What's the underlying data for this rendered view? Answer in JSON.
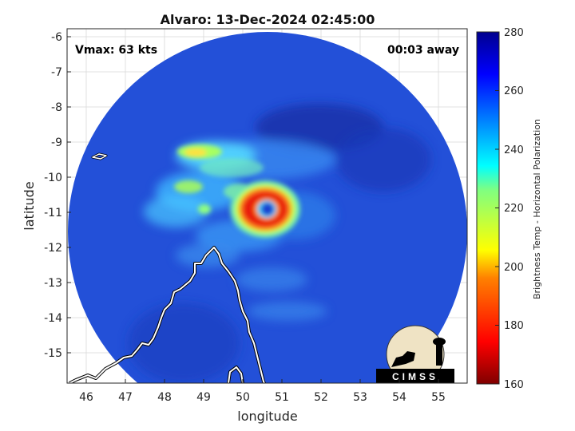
{
  "title": "Alvaro: 13-Dec-2024 02:45:00",
  "vmax_text": "Vmax: 63 kts",
  "away_text": "00:03 away",
  "xlabel": "longitude",
  "ylabel": "latitude",
  "colorbar_label": "Brightness Temp - Horizontal Polarization",
  "logo_text": "CIMSS",
  "x_ticks": [
    "46",
    "47",
    "48",
    "49",
    "50",
    "51",
    "52",
    "53",
    "54",
    "55"
  ],
  "y_ticks": [
    "-6",
    "-7",
    "-8",
    "-9",
    "-10",
    "-11",
    "-12",
    "-13",
    "-14",
    "-15"
  ],
  "colorbar_ticks": [
    "280",
    "260",
    "240",
    "220",
    "200",
    "180",
    "160"
  ],
  "map": {
    "xlim": [
      45.5,
      55.7
    ],
    "ylim": [
      -15.8,
      -5.9
    ],
    "colormap": "jet",
    "clim": [
      160,
      280
    ],
    "storm_center_lon": 50.6,
    "storm_center_lat": -10.9,
    "coastline": "Madagascar (northwest)"
  },
  "colors": {
    "background_field": "#1f4fd8",
    "eyewall": "#e02010",
    "coastline": "#ffffff"
  }
}
